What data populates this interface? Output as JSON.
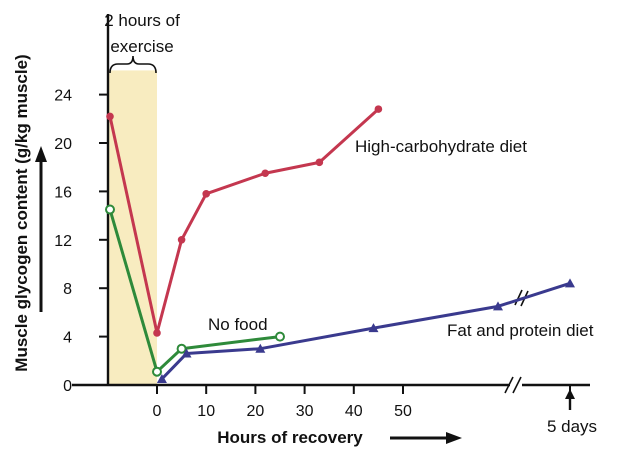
{
  "chart_data": {
    "type": "line",
    "title": "",
    "xlabel": "Hours of recovery",
    "ylabel": "Muscle glycogen content (g/kg muscle)",
    "ylim": [
      0,
      26
    ],
    "yticks": [
      0,
      4,
      8,
      12,
      16,
      20,
      24
    ],
    "xticks": [
      0,
      10,
      20,
      30,
      40,
      50
    ],
    "grid": false,
    "legend": "none",
    "exercise_band": {
      "label": "2 hours of exercise",
      "color": "#f8ecc0"
    },
    "axis_break_label": "5 days",
    "series": [
      {
        "name": "High-carbohydrate diet",
        "color": "#c4374f",
        "marker": "circle",
        "points": [
          {
            "x": "pre-exercise",
            "y": 22.2
          },
          {
            "x": 0,
            "y": 4.3
          },
          {
            "x": 5,
            "y": 12.0
          },
          {
            "x": 10,
            "y": 15.8
          },
          {
            "x": 22,
            "y": 17.5
          },
          {
            "x": 33,
            "y": 18.4
          },
          {
            "x": 45,
            "y": 22.8
          }
        ]
      },
      {
        "name": "No food",
        "color": "#2e8a3a",
        "marker": "open-circle",
        "points": [
          {
            "x": "pre-exercise",
            "y": 14.5
          },
          {
            "x": 0,
            "y": 1.1
          },
          {
            "x": 5,
            "y": 3.0
          },
          {
            "x": 25,
            "y": 4.0
          }
        ]
      },
      {
        "name": "Fat and protein diet",
        "color": "#3a3a8e",
        "marker": "triangle",
        "points": [
          {
            "x": 1,
            "y": 0.5
          },
          {
            "x": 6,
            "y": 2.6
          },
          {
            "x": 21,
            "y": 3.0
          },
          {
            "x": 44,
            "y": 4.7
          },
          {
            "x": "before 5 days",
            "y": 6.5
          },
          {
            "x": "5 days",
            "y": 8.4
          }
        ]
      }
    ]
  }
}
